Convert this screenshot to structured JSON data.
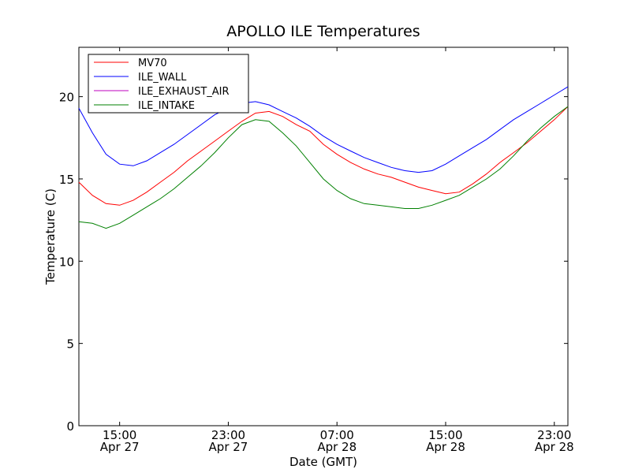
{
  "chart_data": {
    "type": "line",
    "title": "APOLLO ILE Temperatures",
    "xlabel": "Date (GMT)",
    "ylabel": "Temperature (C)",
    "ylim": [
      0,
      23
    ],
    "xlim": [
      "2014-04-27 12:00",
      "2014-04-29 00:00"
    ],
    "yticks": [
      0,
      5,
      10,
      15,
      20
    ],
    "xticks": [
      {
        "x": "2014-04-27 15:00",
        "time": "15:00",
        "date": "Apr 27"
      },
      {
        "x": "2014-04-27 23:00",
        "time": "23:00",
        "date": "Apr 27"
      },
      {
        "x": "2014-04-28 07:00",
        "time": "07:00",
        "date": "Apr 28"
      },
      {
        "x": "2014-04-28 15:00",
        "time": "15:00",
        "date": "Apr 28"
      },
      {
        "x": "2014-04-28 23:00",
        "time": "23:00",
        "date": "Apr 28"
      }
    ],
    "grid": false,
    "legend_position": "upper-left",
    "series": [
      {
        "name": "MV70",
        "color": "#ff0000",
        "x": [
          "2014-04-27 12:00",
          "2014-04-27 13:00",
          "2014-04-27 14:00",
          "2014-04-27 15:00",
          "2014-04-27 16:00",
          "2014-04-27 17:00",
          "2014-04-27 18:00",
          "2014-04-27 19:00",
          "2014-04-27 20:00",
          "2014-04-27 21:00",
          "2014-04-27 22:00",
          "2014-04-27 23:00",
          "2014-04-28 00:00",
          "2014-04-28 01:00",
          "2014-04-28 02:00",
          "2014-04-28 03:00",
          "2014-04-28 04:00",
          "2014-04-28 05:00",
          "2014-04-28 06:00",
          "2014-04-28 07:00",
          "2014-04-28 08:00",
          "2014-04-28 09:00",
          "2014-04-28 10:00",
          "2014-04-28 11:00",
          "2014-04-28 12:00",
          "2014-04-28 13:00",
          "2014-04-28 14:00",
          "2014-04-28 15:00",
          "2014-04-28 16:00",
          "2014-04-28 17:00",
          "2014-04-28 18:00",
          "2014-04-28 19:00",
          "2014-04-28 20:00",
          "2014-04-28 21:00",
          "2014-04-28 22:00",
          "2014-04-28 23:00",
          "2014-04-29 00:00"
        ],
        "values": [
          14.8,
          14.0,
          13.5,
          13.4,
          13.7,
          14.2,
          14.8,
          15.4,
          16.1,
          16.7,
          17.3,
          17.9,
          18.5,
          19.0,
          19.1,
          18.8,
          18.3,
          17.9,
          17.1,
          16.5,
          16.0,
          15.6,
          15.3,
          15.1,
          14.8,
          14.5,
          14.3,
          14.1,
          14.2,
          14.7,
          15.3,
          16.0,
          16.6,
          17.2,
          17.9,
          18.6,
          19.4
        ]
      },
      {
        "name": "ILE_WALL",
        "color": "#0000ff",
        "x": [
          "2014-04-27 12:00",
          "2014-04-27 13:00",
          "2014-04-27 14:00",
          "2014-04-27 15:00",
          "2014-04-27 16:00",
          "2014-04-27 17:00",
          "2014-04-27 18:00",
          "2014-04-27 19:00",
          "2014-04-27 20:00",
          "2014-04-27 21:00",
          "2014-04-27 22:00",
          "2014-04-27 23:00",
          "2014-04-28 00:00",
          "2014-04-28 01:00",
          "2014-04-28 02:00",
          "2014-04-28 03:00",
          "2014-04-28 04:00",
          "2014-04-28 05:00",
          "2014-04-28 06:00",
          "2014-04-28 07:00",
          "2014-04-28 08:00",
          "2014-04-28 09:00",
          "2014-04-28 10:00",
          "2014-04-28 11:00",
          "2014-04-28 12:00",
          "2014-04-28 13:00",
          "2014-04-28 14:00",
          "2014-04-28 15:00",
          "2014-04-28 16:00",
          "2014-04-28 17:00",
          "2014-04-28 18:00",
          "2014-04-28 19:00",
          "2014-04-28 20:00",
          "2014-04-28 21:00",
          "2014-04-28 22:00",
          "2014-04-28 23:00",
          "2014-04-29 00:00"
        ],
        "values": [
          19.3,
          17.8,
          16.5,
          15.9,
          15.8,
          16.1,
          16.6,
          17.1,
          17.7,
          18.3,
          18.9,
          19.3,
          19.6,
          19.7,
          19.5,
          19.1,
          18.7,
          18.2,
          17.6,
          17.1,
          16.7,
          16.3,
          16.0,
          15.7,
          15.5,
          15.4,
          15.5,
          15.9,
          16.4,
          16.9,
          17.4,
          18.0,
          18.6,
          19.1,
          19.6,
          20.1,
          20.6
        ]
      },
      {
        "name": "ILE_EXHAUST_AIR",
        "color": "#bf00bf",
        "x": [],
        "values": []
      },
      {
        "name": "ILE_INTAKE",
        "color": "#008000",
        "x": [
          "2014-04-27 12:00",
          "2014-04-27 13:00",
          "2014-04-27 14:00",
          "2014-04-27 15:00",
          "2014-04-27 16:00",
          "2014-04-27 17:00",
          "2014-04-27 18:00",
          "2014-04-27 19:00",
          "2014-04-27 20:00",
          "2014-04-27 21:00",
          "2014-04-27 22:00",
          "2014-04-27 23:00",
          "2014-04-28 00:00",
          "2014-04-28 01:00",
          "2014-04-28 02:00",
          "2014-04-28 03:00",
          "2014-04-28 04:00",
          "2014-04-28 05:00",
          "2014-04-28 06:00",
          "2014-04-28 07:00",
          "2014-04-28 08:00",
          "2014-04-28 09:00",
          "2014-04-28 10:00",
          "2014-04-28 11:00",
          "2014-04-28 12:00",
          "2014-04-28 13:00",
          "2014-04-28 14:00",
          "2014-04-28 15:00",
          "2014-04-28 16:00",
          "2014-04-28 17:00",
          "2014-04-28 18:00",
          "2014-04-28 19:00",
          "2014-04-28 20:00",
          "2014-04-28 21:00",
          "2014-04-28 22:00",
          "2014-04-28 23:00",
          "2014-04-29 00:00"
        ],
        "values": [
          12.4,
          12.3,
          12.0,
          12.3,
          12.8,
          13.3,
          13.8,
          14.4,
          15.1,
          15.8,
          16.6,
          17.5,
          18.3,
          18.6,
          18.5,
          17.8,
          17.0,
          16.0,
          15.0,
          14.3,
          13.8,
          13.5,
          13.4,
          13.3,
          13.2,
          13.2,
          13.4,
          13.7,
          14.0,
          14.5,
          15.0,
          15.6,
          16.4,
          17.3,
          18.1,
          18.8,
          19.4
        ]
      }
    ]
  }
}
